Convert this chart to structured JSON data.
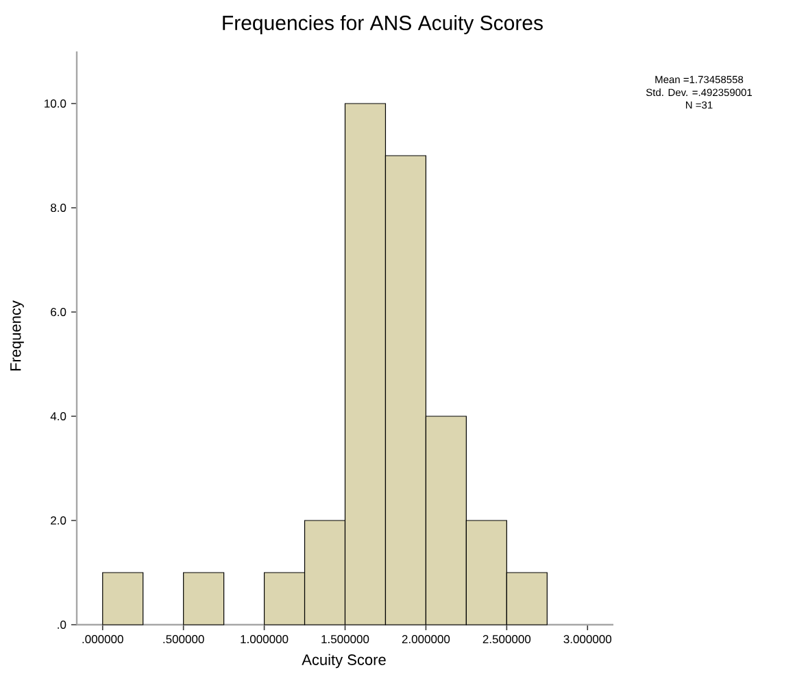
{
  "chart_data": {
    "type": "histogram",
    "title": "Frequencies for ANS Acuity Scores",
    "xlabel": "Acuity Score",
    "ylabel": "Frequency",
    "bins": [
      0,
      0.25,
      0.5,
      0.75,
      1.0,
      1.25,
      1.5,
      1.75,
      2.0,
      2.25,
      2.5,
      2.75
    ],
    "values": [
      1,
      0,
      1,
      0,
      1,
      2,
      10,
      9,
      4,
      2,
      1
    ],
    "color": "#dcd6b0",
    "xlim": [
      -0.16,
      3.16
    ],
    "ylim": [
      0,
      11
    ],
    "xticks": [
      {
        "value": 0,
        "label": ".000000"
      },
      {
        "value": 0.5,
        "label": ".500000"
      },
      {
        "value": 1.0,
        "label": "1.000000"
      },
      {
        "value": 1.5,
        "label": "1.500000"
      },
      {
        "value": 2.0,
        "label": "2.000000"
      },
      {
        "value": 2.5,
        "label": "2.500000"
      },
      {
        "value": 3.0,
        "label": "3.000000"
      }
    ],
    "yticks": [
      {
        "value": 0,
        "label": ".0"
      },
      {
        "value": 2,
        "label": "2.0"
      },
      {
        "value": 4,
        "label": "4.0"
      },
      {
        "value": 6,
        "label": "6.0"
      },
      {
        "value": 8,
        "label": "8.0"
      },
      {
        "value": 10,
        "label": "10.0"
      }
    ],
    "annotations": [
      "Mean =1.73458558",
      "Std. Dev. =.492359001",
      "N =31"
    ]
  }
}
